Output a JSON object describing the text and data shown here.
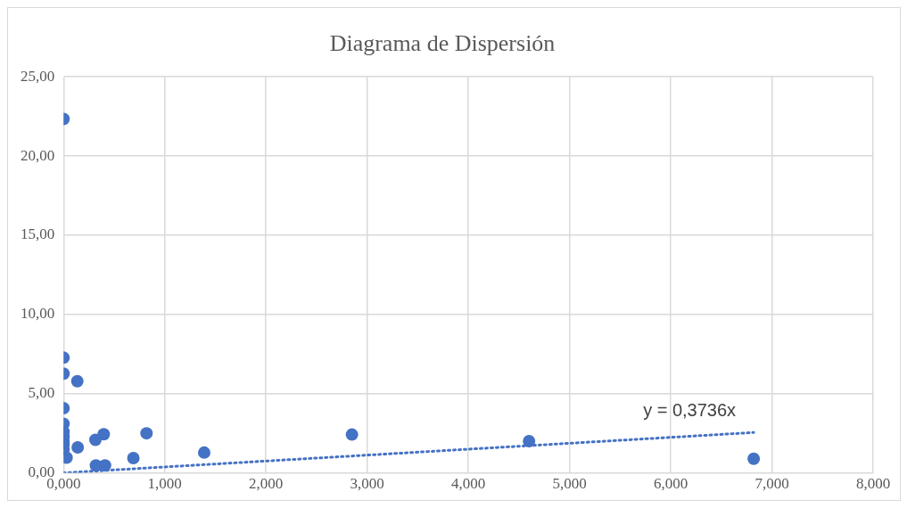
{
  "chart_data": {
    "type": "scatter",
    "title": "Diagrama de Dispersión",
    "series": [
      {
        "type": "scatter",
        "color": "#4472c4",
        "marker": "circle",
        "x": [
          0,
          0,
          0,
          0.136,
          0,
          0,
          0,
          0,
          0,
          0,
          0,
          0.03,
          0.14,
          0.315,
          0.397,
          0.32,
          0.41,
          0.69,
          0.82,
          1.39,
          2.85,
          4.6,
          6.82
        ],
        "values": [
          22.34,
          7.27,
          6.26,
          5.79,
          4.08,
          3.1,
          2.6,
          2.3,
          2.0,
          1.8,
          1.5,
          0.96,
          1.61,
          2.09,
          2.44,
          0.47,
          0.47,
          0.93,
          2.5,
          1.28,
          2.42,
          2.0,
          0.89
        ]
      },
      {
        "type": "line",
        "color": "#4472c4",
        "line_style": "dotted",
        "marker": "none",
        "x": [
          0,
          6.82
        ],
        "values": [
          0,
          2.55
        ]
      }
    ],
    "xlim": [
      0,
      8
    ],
    "xticks": [
      {
        "value": 0,
        "label": "0,000"
      },
      {
        "value": 1,
        "label": "1,000"
      },
      {
        "value": 2,
        "label": "2,000"
      },
      {
        "value": 3,
        "label": "3,000"
      },
      {
        "value": 4,
        "label": "4,000"
      },
      {
        "value": 5,
        "label": "5,000"
      },
      {
        "value": 6,
        "label": "6,000"
      },
      {
        "value": 7,
        "label": "7,000"
      },
      {
        "value": 8,
        "label": "8,000"
      }
    ],
    "ylim": [
      0,
      25
    ],
    "yticks": [
      {
        "value": 0,
        "label": "0,00"
      },
      {
        "value": 5,
        "label": "5,00"
      },
      {
        "value": 10,
        "label": "10,00"
      },
      {
        "value": 15,
        "label": "15,00"
      },
      {
        "value": 20,
        "label": "20,00"
      },
      {
        "value": 25,
        "label": "25,00"
      }
    ],
    "grid": true,
    "annotations": [
      "y = 0,3736x"
    ]
  }
}
